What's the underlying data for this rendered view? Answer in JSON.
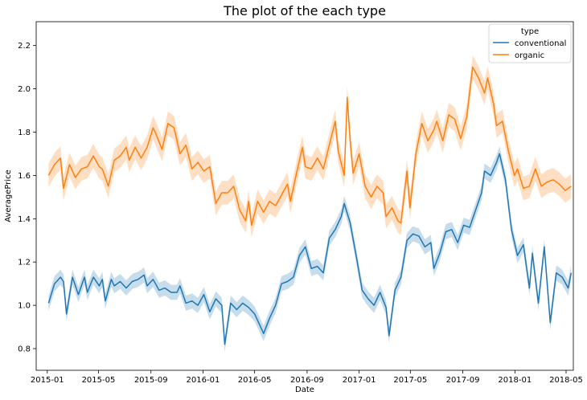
{
  "chart_data": {
    "type": "line",
    "title": "The plot of the each type",
    "xlabel": "Date",
    "ylabel": "AveragePrice",
    "xlim": [
      "2014-12-06",
      "2018-05-18"
    ],
    "ylim": [
      0.7,
      2.31
    ],
    "x_ticks": [
      "2015-01",
      "2015-05",
      "2015-09",
      "2016-01",
      "2016-05",
      "2016-09",
      "2017-01",
      "2017-05",
      "2017-09",
      "2018-01",
      "2018-05"
    ],
    "y_ticks": [
      0.8,
      1.0,
      1.2,
      1.4,
      1.6,
      1.8,
      2.0,
      2.2
    ],
    "grid": false,
    "legend": {
      "title": "type",
      "placement": "top-right"
    },
    "series": [
      {
        "name": "conventional",
        "color": "#1f77b4",
        "points": [
          [
            "2015-01-04",
            1.01
          ],
          [
            "2015-01-18",
            1.1
          ],
          [
            "2015-02-01",
            1.13
          ],
          [
            "2015-02-08",
            1.11
          ],
          [
            "2015-02-15",
            0.96
          ],
          [
            "2015-03-01",
            1.13
          ],
          [
            "2015-03-15",
            1.05
          ],
          [
            "2015-03-29",
            1.13
          ],
          [
            "2015-04-05",
            1.06
          ],
          [
            "2015-04-19",
            1.13
          ],
          [
            "2015-05-03",
            1.09
          ],
          [
            "2015-05-10",
            1.12
          ],
          [
            "2015-05-17",
            1.02
          ],
          [
            "2015-05-31",
            1.12
          ],
          [
            "2015-06-07",
            1.09
          ],
          [
            "2015-06-21",
            1.11
          ],
          [
            "2015-07-05",
            1.08
          ],
          [
            "2015-07-19",
            1.11
          ],
          [
            "2015-08-02",
            1.12
          ],
          [
            "2015-08-16",
            1.14
          ],
          [
            "2015-08-23",
            1.09
          ],
          [
            "2015-09-06",
            1.12
          ],
          [
            "2015-09-20",
            1.07
          ],
          [
            "2015-10-04",
            1.08
          ],
          [
            "2015-10-18",
            1.06
          ],
          [
            "2015-11-01",
            1.06
          ],
          [
            "2015-11-08",
            1.09
          ],
          [
            "2015-11-22",
            1.01
          ],
          [
            "2015-12-06",
            1.02
          ],
          [
            "2015-12-20",
            1.0
          ],
          [
            "2016-01-03",
            1.05
          ],
          [
            "2016-01-17",
            0.97
          ],
          [
            "2016-01-31",
            1.03
          ],
          [
            "2016-02-14",
            1.0
          ],
          [
            "2016-02-21",
            0.82
          ],
          [
            "2016-03-06",
            1.01
          ],
          [
            "2016-03-20",
            0.98
          ],
          [
            "2016-04-03",
            1.01
          ],
          [
            "2016-04-17",
            0.99
          ],
          [
            "2016-05-01",
            0.96
          ],
          [
            "2016-05-15",
            0.9
          ],
          [
            "2016-05-22",
            0.87
          ],
          [
            "2016-06-05",
            0.94
          ],
          [
            "2016-06-19",
            1.0
          ],
          [
            "2016-07-03",
            1.1
          ],
          [
            "2016-07-17",
            1.11
          ],
          [
            "2016-07-31",
            1.13
          ],
          [
            "2016-08-14",
            1.23
          ],
          [
            "2016-08-28",
            1.27
          ],
          [
            "2016-09-11",
            1.17
          ],
          [
            "2016-09-25",
            1.18
          ],
          [
            "2016-10-09",
            1.15
          ],
          [
            "2016-10-23",
            1.31
          ],
          [
            "2016-11-06",
            1.35
          ],
          [
            "2016-11-20",
            1.41
          ],
          [
            "2016-11-27",
            1.47
          ],
          [
            "2016-12-11",
            1.38
          ],
          [
            "2016-12-25",
            1.23
          ],
          [
            "2017-01-08",
            1.07
          ],
          [
            "2017-01-22",
            1.03
          ],
          [
            "2017-02-05",
            1.0
          ],
          [
            "2017-02-19",
            1.06
          ],
          [
            "2017-03-05",
            0.99
          ],
          [
            "2017-03-12",
            0.86
          ],
          [
            "2017-03-26",
            1.07
          ],
          [
            "2017-04-09",
            1.13
          ],
          [
            "2017-04-23",
            1.3
          ],
          [
            "2017-05-07",
            1.33
          ],
          [
            "2017-05-21",
            1.32
          ],
          [
            "2017-06-04",
            1.27
          ],
          [
            "2017-06-18",
            1.29
          ],
          [
            "2017-06-25",
            1.17
          ],
          [
            "2017-07-09",
            1.24
          ],
          [
            "2017-07-23",
            1.34
          ],
          [
            "2017-08-06",
            1.35
          ],
          [
            "2017-08-20",
            1.29
          ],
          [
            "2017-09-03",
            1.37
          ],
          [
            "2017-09-17",
            1.36
          ],
          [
            "2017-10-01",
            1.44
          ],
          [
            "2017-10-15",
            1.52
          ],
          [
            "2017-10-22",
            1.62
          ],
          [
            "2017-11-05",
            1.6
          ],
          [
            "2017-11-19",
            1.66
          ],
          [
            "2017-11-26",
            1.7
          ],
          [
            "2017-12-10",
            1.58
          ],
          [
            "2017-12-24",
            1.35
          ],
          [
            "2018-01-07",
            1.23
          ],
          [
            "2018-01-21",
            1.28
          ],
          [
            "2018-02-04",
            1.08
          ],
          [
            "2018-02-11",
            1.24
          ],
          [
            "2018-02-25",
            1.01
          ],
          [
            "2018-03-11",
            1.27
          ],
          [
            "2018-03-25",
            0.92
          ],
          [
            "2018-04-08",
            1.15
          ],
          [
            "2018-04-22",
            1.13
          ],
          [
            "2018-05-06",
            1.08
          ],
          [
            "2018-05-13",
            1.15
          ]
        ]
      },
      {
        "name": "organic",
        "color": "#ff7f0e",
        "points": [
          [
            "2015-01-04",
            1.6
          ],
          [
            "2015-01-18",
            1.65
          ],
          [
            "2015-02-01",
            1.68
          ],
          [
            "2015-02-08",
            1.54
          ],
          [
            "2015-02-22",
            1.65
          ],
          [
            "2015-03-08",
            1.59
          ],
          [
            "2015-03-22",
            1.63
          ],
          [
            "2015-04-05",
            1.64
          ],
          [
            "2015-04-19",
            1.69
          ],
          [
            "2015-05-03",
            1.64
          ],
          [
            "2015-05-10",
            1.63
          ],
          [
            "2015-05-24",
            1.55
          ],
          [
            "2015-06-07",
            1.67
          ],
          [
            "2015-06-21",
            1.69
          ],
          [
            "2015-07-05",
            1.73
          ],
          [
            "2015-07-12",
            1.67
          ],
          [
            "2015-07-26",
            1.73
          ],
          [
            "2015-08-09",
            1.68
          ],
          [
            "2015-08-23",
            1.73
          ],
          [
            "2015-09-06",
            1.82
          ],
          [
            "2015-09-13",
            1.79
          ],
          [
            "2015-09-27",
            1.72
          ],
          [
            "2015-10-11",
            1.84
          ],
          [
            "2015-10-25",
            1.82
          ],
          [
            "2015-11-08",
            1.7
          ],
          [
            "2015-11-22",
            1.74
          ],
          [
            "2015-12-06",
            1.63
          ],
          [
            "2015-12-20",
            1.66
          ],
          [
            "2016-01-03",
            1.62
          ],
          [
            "2016-01-17",
            1.64
          ],
          [
            "2016-01-31",
            1.47
          ],
          [
            "2016-02-14",
            1.52
          ],
          [
            "2016-02-28",
            1.52
          ],
          [
            "2016-03-13",
            1.55
          ],
          [
            "2016-03-27",
            1.44
          ],
          [
            "2016-04-10",
            1.39
          ],
          [
            "2016-04-17",
            1.48
          ],
          [
            "2016-04-24",
            1.37
          ],
          [
            "2016-05-08",
            1.48
          ],
          [
            "2016-05-22",
            1.43
          ],
          [
            "2016-06-05",
            1.48
          ],
          [
            "2016-06-19",
            1.46
          ],
          [
            "2016-07-03",
            1.51
          ],
          [
            "2016-07-17",
            1.56
          ],
          [
            "2016-07-24",
            1.48
          ],
          [
            "2016-08-07",
            1.61
          ],
          [
            "2016-08-21",
            1.73
          ],
          [
            "2016-08-28",
            1.64
          ],
          [
            "2016-09-11",
            1.63
          ],
          [
            "2016-09-25",
            1.68
          ],
          [
            "2016-10-09",
            1.63
          ],
          [
            "2016-10-23",
            1.74
          ],
          [
            "2016-11-06",
            1.85
          ],
          [
            "2016-11-13",
            1.71
          ],
          [
            "2016-11-27",
            1.6
          ],
          [
            "2016-12-04",
            1.96
          ],
          [
            "2016-12-11",
            1.76
          ],
          [
            "2016-12-18",
            1.61
          ],
          [
            "2017-01-01",
            1.7
          ],
          [
            "2017-01-15",
            1.55
          ],
          [
            "2017-01-29",
            1.5
          ],
          [
            "2017-02-12",
            1.55
          ],
          [
            "2017-02-26",
            1.52
          ],
          [
            "2017-03-05",
            1.41
          ],
          [
            "2017-03-19",
            1.45
          ],
          [
            "2017-04-02",
            1.39
          ],
          [
            "2017-04-09",
            1.38
          ],
          [
            "2017-04-23",
            1.62
          ],
          [
            "2017-04-30",
            1.45
          ],
          [
            "2017-05-14",
            1.7
          ],
          [
            "2017-05-28",
            1.84
          ],
          [
            "2017-06-11",
            1.76
          ],
          [
            "2017-06-25",
            1.81
          ],
          [
            "2017-07-02",
            1.85
          ],
          [
            "2017-07-16",
            1.76
          ],
          [
            "2017-07-30",
            1.88
          ],
          [
            "2017-08-13",
            1.86
          ],
          [
            "2017-08-27",
            1.77
          ],
          [
            "2017-09-10",
            1.87
          ],
          [
            "2017-09-24",
            2.1
          ],
          [
            "2017-10-08",
            2.05
          ],
          [
            "2017-10-22",
            1.98
          ],
          [
            "2017-10-29",
            2.05
          ],
          [
            "2017-11-12",
            1.93
          ],
          [
            "2017-11-19",
            1.83
          ],
          [
            "2017-12-03",
            1.85
          ],
          [
            "2017-12-17",
            1.71
          ],
          [
            "2017-12-31",
            1.6
          ],
          [
            "2018-01-07",
            1.63
          ],
          [
            "2018-01-21",
            1.54
          ],
          [
            "2018-02-04",
            1.55
          ],
          [
            "2018-02-18",
            1.63
          ],
          [
            "2018-03-04",
            1.55
          ],
          [
            "2018-03-18",
            1.57
          ],
          [
            "2018-04-01",
            1.58
          ],
          [
            "2018-04-15",
            1.56
          ],
          [
            "2018-04-29",
            1.53
          ],
          [
            "2018-05-13",
            1.55
          ]
        ]
      }
    ],
    "confidence_halfwidth": {
      "conventional": 0.035,
      "organic": 0.055
    }
  }
}
